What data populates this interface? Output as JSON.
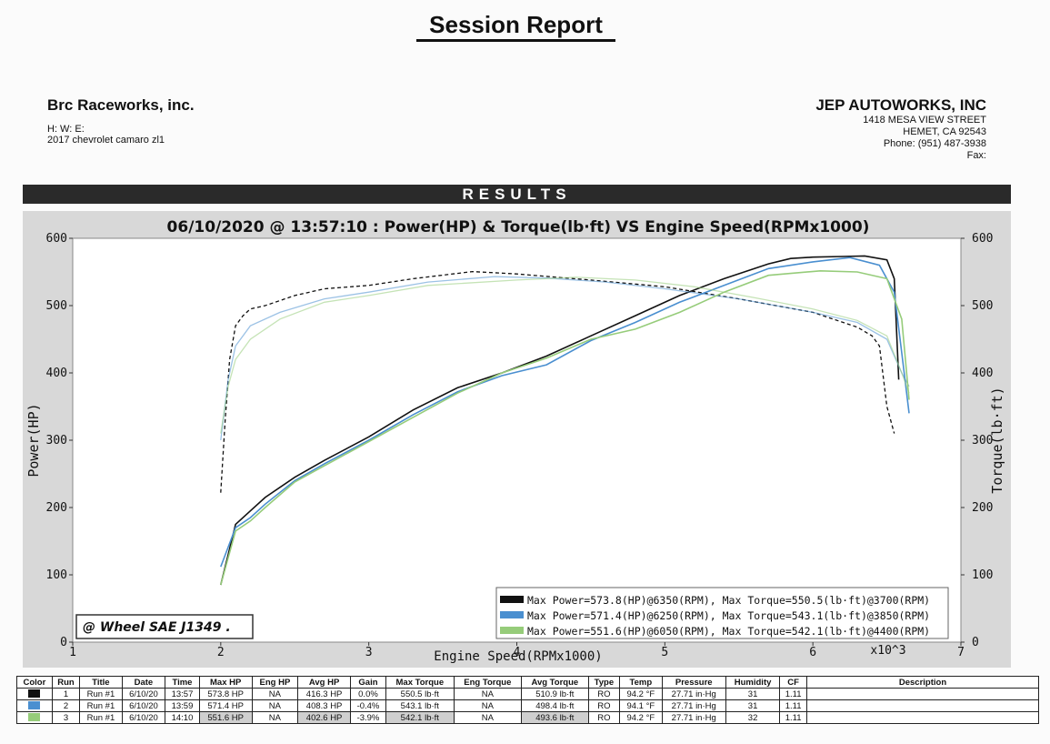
{
  "header": {
    "title": "Session Report",
    "shop_left": {
      "name": "Brc Raceworks, inc.",
      "hwe": "H:      W:      E:",
      "vehicle": "2017 chevrolet camaro zl1"
    },
    "shop_right": {
      "name": "JEP AUTOWORKS, INC",
      "street": "1418 MESA VIEW STREET",
      "city": "HEMET, CA  92543",
      "phone": "Phone: (951) 487-3938",
      "fax": "Fax:"
    },
    "results_label": "RESULTS"
  },
  "chart_data": {
    "type": "line",
    "title": "06/10/2020 @ 13:57:10 : Power(HP) & Torque(lb·ft) VS Engine Speed(RPMx1000)",
    "xlabel": "Engine Speed(RPMx1000)",
    "x_multiplier_label": "x10^3",
    "ylabel_left": "Power(HP)",
    "ylabel_right": "Torque(lb·ft)",
    "xlim": [
      1,
      7
    ],
    "ylim": [
      0,
      600
    ],
    "x_ticks": [
      1,
      2,
      3,
      4,
      5,
      6,
      7
    ],
    "y_ticks": [
      0,
      100,
      200,
      300,
      400,
      500,
      600
    ],
    "grid": false,
    "legend_position": "bottom-right",
    "standard_label": "@ Wheel SAE J1349  .",
    "legend": [
      "Max Power=573.8(HP)@6350(RPM), Max Torque=550.5(lb·ft)@3700(RPM)",
      "Max Power=571.4(HP)@6250(RPM), Max Torque=543.1(lb·ft)@3850(RPM)",
      "Max Power=551.6(HP)@6050(RPM), Max Torque=542.1(lb·ft)@4400(RPM)"
    ],
    "series": [
      {
        "name": "Run 1",
        "color": "#111111",
        "power": {
          "x": [
            2.0,
            2.05,
            2.1,
            2.2,
            2.3,
            2.5,
            2.7,
            3.0,
            3.3,
            3.6,
            3.9,
            4.2,
            4.5,
            4.8,
            5.1,
            5.4,
            5.7,
            5.85,
            6.0,
            6.2,
            6.35,
            6.5,
            6.55,
            6.58
          ],
          "y": [
            85,
            130,
            175,
            195,
            215,
            245,
            270,
            305,
            345,
            378,
            400,
            425,
            455,
            485,
            515,
            540,
            562,
            570,
            572,
            573,
            573.8,
            568,
            540,
            390
          ]
        },
        "torque": {
          "x": [
            2.0,
            2.03,
            2.06,
            2.1,
            2.15,
            2.2,
            2.3,
            2.5,
            2.7,
            3.0,
            3.3,
            3.7,
            4.0,
            4.5,
            5.0,
            5.5,
            6.0,
            6.3,
            6.4,
            6.45,
            6.5,
            6.55
          ],
          "y": [
            222,
            330,
            420,
            470,
            485,
            495,
            500,
            515,
            525,
            530,
            540,
            550.5,
            547,
            538,
            528,
            510,
            490,
            468,
            455,
            440,
            350,
            310
          ]
        }
      },
      {
        "name": "Run 2",
        "color": "#4a8fd0",
        "power": {
          "x": [
            2.0,
            2.1,
            2.2,
            2.3,
            2.5,
            2.7,
            3.0,
            3.3,
            3.6,
            3.9,
            4.2,
            4.5,
            4.8,
            5.1,
            5.4,
            5.7,
            6.0,
            6.25,
            6.45,
            6.55,
            6.6,
            6.65
          ],
          "y": [
            112,
            170,
            185,
            205,
            240,
            265,
            300,
            338,
            372,
            396,
            412,
            448,
            475,
            505,
            530,
            555,
            565,
            571.4,
            560,
            520,
            430,
            340
          ]
        },
        "torque": {
          "x": [
            2.0,
            2.05,
            2.1,
            2.2,
            2.4,
            2.7,
            3.0,
            3.4,
            3.85,
            4.2,
            4.6,
            5.0,
            5.5,
            6.0,
            6.3,
            6.5,
            6.6,
            6.65
          ],
          "y": [
            300,
            390,
            440,
            470,
            490,
            510,
            520,
            535,
            543.1,
            541,
            535,
            525,
            510,
            490,
            475,
            450,
            400,
            380
          ]
        }
      },
      {
        "name": "Run 3",
        "color": "#96cc7a",
        "power": {
          "x": [
            2.0,
            2.1,
            2.2,
            2.3,
            2.5,
            2.7,
            3.0,
            3.3,
            3.6,
            3.9,
            4.2,
            4.5,
            4.8,
            5.1,
            5.4,
            5.7,
            6.05,
            6.3,
            6.5,
            6.6,
            6.65
          ],
          "y": [
            85,
            165,
            180,
            200,
            238,
            262,
            298,
            334,
            370,
            400,
            422,
            450,
            465,
            490,
            520,
            545,
            551.6,
            550,
            540,
            480,
            360
          ]
        },
        "torque": {
          "x": [
            2.0,
            2.05,
            2.1,
            2.2,
            2.4,
            2.7,
            3.0,
            3.4,
            4.0,
            4.4,
            4.8,
            5.2,
            5.6,
            6.0,
            6.3,
            6.5,
            6.6,
            6.65
          ],
          "y": [
            310,
            380,
            420,
            450,
            480,
            505,
            515,
            530,
            538,
            542.1,
            538,
            528,
            512,
            495,
            478,
            455,
            400,
            370
          ]
        }
      }
    ]
  },
  "table": {
    "headers": [
      "Color",
      "Run",
      "Title",
      "Date",
      "Time",
      "Max HP",
      "Eng HP",
      "Avg HP",
      "Gain",
      "Max Torque",
      "Eng Torque",
      "Avg Torque",
      "Type",
      "Temp",
      "Pressure",
      "Humidity",
      "CF",
      "Description"
    ],
    "rows": [
      {
        "color": "#111111",
        "run": "1",
        "title": "Run #1",
        "date": "6/10/20",
        "time": "13:57",
        "max_hp": "573.8 HP",
        "eng_hp": "NA",
        "avg_hp": "416.3 HP",
        "gain": "0.0%",
        "max_torque": "550.5 lb·ft",
        "eng_torque": "NA",
        "avg_torque": "510.9 lb·ft",
        "type": "RO",
        "temp": "94.2 °F",
        "pressure": "27.71 in·Hg",
        "humidity": "31",
        "cf": "1.11",
        "description": ""
      },
      {
        "color": "#4a8fd0",
        "run": "2",
        "title": "Run #1",
        "date": "6/10/20",
        "time": "13:59",
        "max_hp": "571.4 HP",
        "eng_hp": "NA",
        "avg_hp": "408.3 HP",
        "gain": "-0.4%",
        "max_torque": "543.1 lb·ft",
        "eng_torque": "NA",
        "avg_torque": "498.4 lb·ft",
        "type": "RO",
        "temp": "94.1 °F",
        "pressure": "27.71 in·Hg",
        "humidity": "31",
        "cf": "1.11",
        "description": ""
      },
      {
        "color": "#96cc7a",
        "run": "3",
        "title": "Run #1",
        "date": "6/10/20",
        "time": "14:10",
        "max_hp": "551.6 HP",
        "eng_hp": "NA",
        "avg_hp": "402.6 HP",
        "gain": "-3.9%",
        "max_torque": "542.1 lb·ft",
        "eng_torque": "NA",
        "avg_torque": "493.6 lb·ft",
        "type": "RO",
        "temp": "94.2 °F",
        "pressure": "27.71 in·Hg",
        "humidity": "32",
        "cf": "1.11",
        "description": ""
      }
    ]
  }
}
